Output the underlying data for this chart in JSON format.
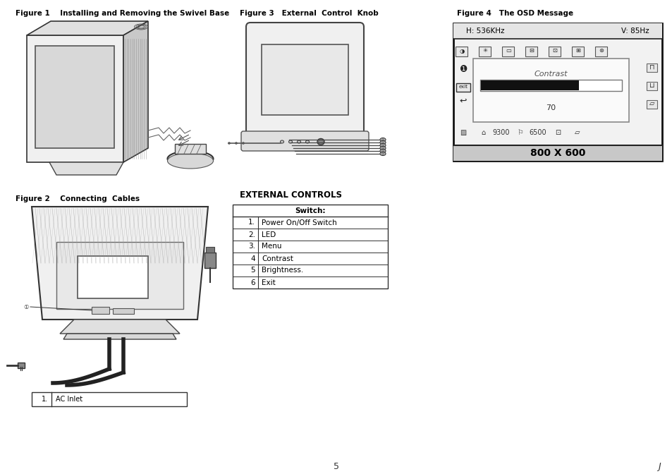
{
  "background_color": "#ffffff",
  "fig1_label": "Figure 1    Installing and Removing the Swivel Base",
  "fig2_label": "Figure 2    Connecting  Cables",
  "fig3_label": "Figure 3   External  Control  Knob",
  "fig4_label": "Figure 4   The OSD Message",
  "external_controls_label": "EXTERNAL CONTROLS",
  "table_header": "Switch:",
  "table_rows": [
    [
      "1.",
      "Power On/Off Switch"
    ],
    [
      "2.",
      "LED"
    ],
    [
      "3.",
      "Menu"
    ],
    [
      "4",
      "Contrast"
    ],
    [
      "5",
      "Brightness."
    ],
    [
      "6",
      "Exit"
    ]
  ],
  "ac_inlet_num": "1.",
  "ac_inlet_text": "AC Inlet",
  "osd_hz_left": "H: 536KHz",
  "osd_hz_right": "V: 85Hz",
  "osd_contrast_label": "Contrast",
  "osd_value": "70",
  "osd_resolution": "800 X 600",
  "osd_val1": "9300",
  "osd_val2": "6500",
  "page_number": "5",
  "page_letter": "J"
}
